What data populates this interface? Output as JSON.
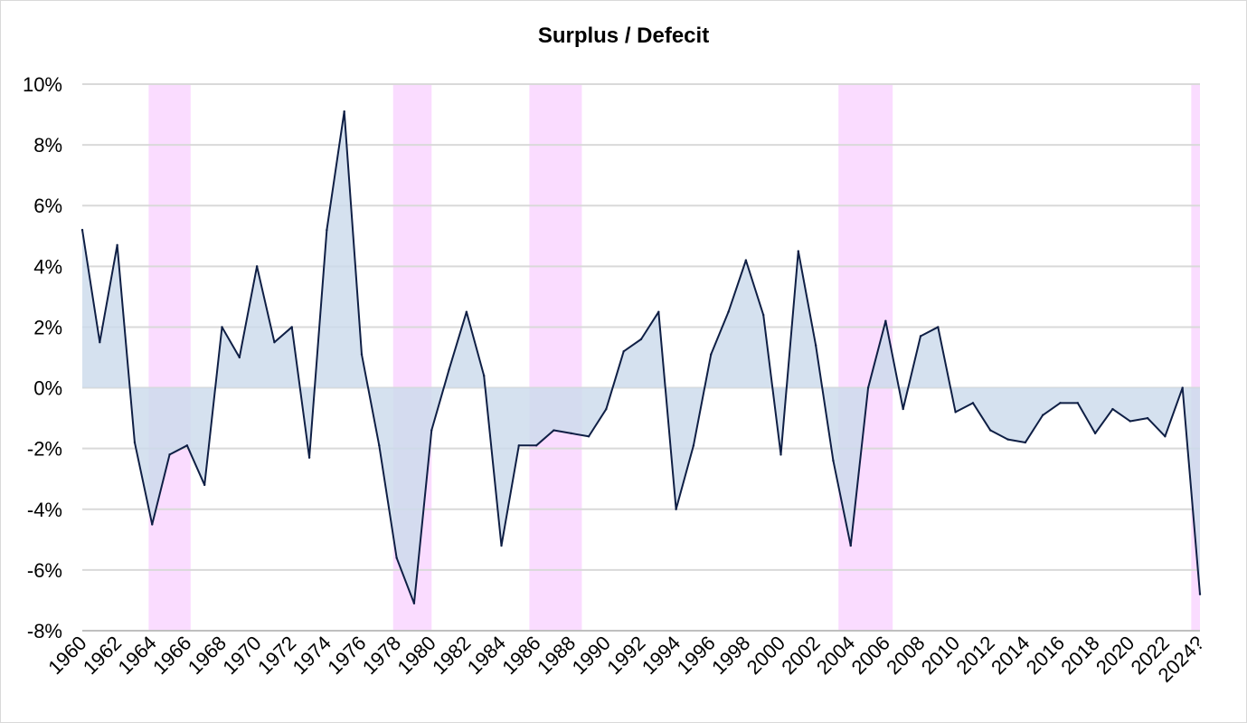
{
  "chart_data": {
    "type": "area",
    "title": "Surplus / Defecit",
    "xlabel": "",
    "ylabel": "",
    "ylim": [
      -8,
      10
    ],
    "y_ticks": [
      "10%",
      "8%",
      "6%",
      "4%",
      "2%",
      "0%",
      "-2%",
      "-4%",
      "-6%",
      "-8%"
    ],
    "y_tick_values": [
      10,
      8,
      6,
      4,
      2,
      0,
      -2,
      -4,
      -6,
      -8
    ],
    "x_tick_labels": [
      "1960",
      "1962",
      "1964",
      "1966",
      "1968",
      "1970",
      "1972",
      "1974",
      "1976",
      "1978",
      "1980",
      "1982",
      "1984",
      "1986",
      "1988",
      "1990",
      "1992",
      "1994",
      "1996",
      "1998",
      "2000",
      "2002",
      "2004",
      "2006",
      "2008",
      "2010",
      "2012",
      "2014",
      "2016",
      "2018",
      "2020",
      "2022",
      "2024?"
    ],
    "x": [
      "1960",
      "1961",
      "1962",
      "1963",
      "1964",
      "1965",
      "1966",
      "1967",
      "1968",
      "1969",
      "1970",
      "1971",
      "1972",
      "1973",
      "1974",
      "1975",
      "1976",
      "1977",
      "1978",
      "1979",
      "1980",
      "1981",
      "1982",
      "1983",
      "1984",
      "1985",
      "1986",
      "1987",
      "1988",
      "1989",
      "1990",
      "1991",
      "1992",
      "1993",
      "1994",
      "1995",
      "1996",
      "1997",
      "1998",
      "1999",
      "2000",
      "2001",
      "2002",
      "2003",
      "2004",
      "2005",
      "2006",
      "2007",
      "2008",
      "2009",
      "2010",
      "2011",
      "2012",
      "2013",
      "2014",
      "2015",
      "2016",
      "2017",
      "2018",
      "2019",
      "2020",
      "2021",
      "2022",
      "2023",
      "2024?"
    ],
    "series": [
      {
        "values": [
          5.2,
          1.5,
          4.7,
          -1.8,
          -4.5,
          -2.2,
          -1.9,
          -3.2,
          2.0,
          1.0,
          4.0,
          1.5,
          2.0,
          -2.3,
          5.2,
          9.1,
          1.1,
          -1.9,
          -5.6,
          -7.1,
          -1.4,
          0.6,
          2.5,
          0.4,
          -5.2,
          -1.9,
          -1.9,
          -1.4,
          -1.5,
          -1.6,
          -0.7,
          1.2,
          1.6,
          2.5,
          -4.0,
          -1.9,
          1.1,
          2.5,
          4.2,
          2.4,
          -2.2,
          4.5,
          1.4,
          -2.4,
          -5.2,
          0.0,
          2.2,
          -0.7,
          1.7,
          2.0,
          -0.8,
          -0.5,
          -1.4,
          -1.7,
          -1.8,
          -0.9,
          -0.5,
          -0.5,
          -1.5,
          -0.7,
          -1.1,
          -1.0,
          -1.6,
          0.0,
          -6.8
        ],
        "fill": "#ccdaeb",
        "line": "#0f1f45"
      }
    ],
    "shaded_periods": [
      {
        "from": "1963.8",
        "to": "1966.1"
      },
      {
        "from": "1977.8",
        "to": "1979.9"
      },
      {
        "from": "1985.6",
        "to": "1988.5"
      },
      {
        "from": "2003.3",
        "to": "2006.3"
      },
      {
        "from": "2023.5",
        "to": "2024?"
      }
    ],
    "shade_color": "#fadcff",
    "grid": true,
    "legend": "none"
  }
}
